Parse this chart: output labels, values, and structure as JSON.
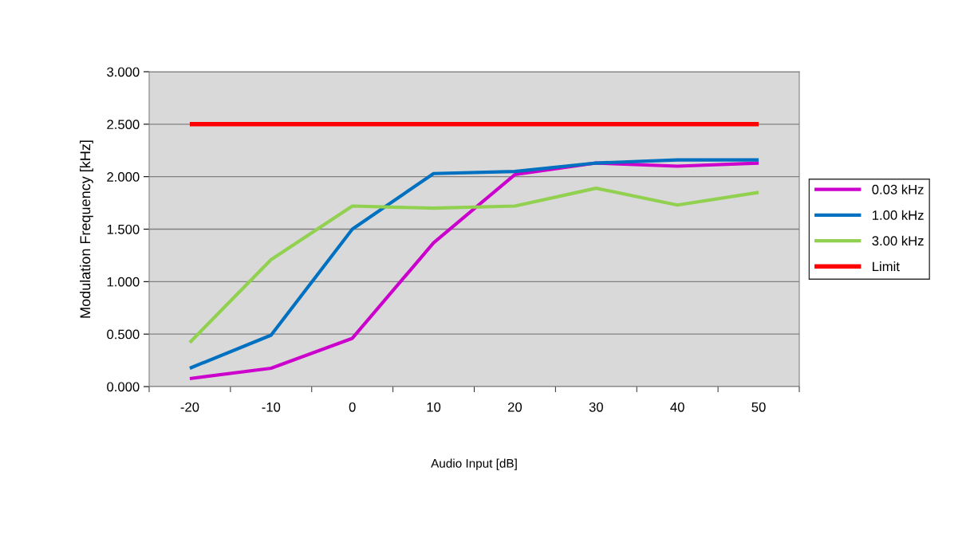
{
  "chart_data": {
    "type": "line",
    "xlabel": "Audio Input [dB]",
    "ylabel": "Modulation Frequency [kHz]",
    "categories": [
      "-20",
      "-10",
      "0",
      "10",
      "20",
      "30",
      "40",
      "50"
    ],
    "series": [
      {
        "name": "0.03 kHz",
        "color": "#cc00cc",
        "values": [
          0.076,
          0.175,
          0.46,
          1.37,
          2.02,
          2.13,
          2.1,
          2.13
        ]
      },
      {
        "name": "1.00 kHz",
        "color": "#0070c0",
        "values": [
          0.175,
          0.49,
          1.5,
          2.03,
          2.05,
          2.13,
          2.16,
          2.16
        ]
      },
      {
        "name": "3.00 kHz",
        "color": "#92d050",
        "values": [
          0.42,
          1.21,
          1.72,
          1.7,
          1.72,
          1.89,
          1.73,
          1.85
        ]
      },
      {
        "name": "Limit",
        "color": "#ff0000",
        "values": [
          2.5,
          2.5,
          2.5,
          2.5,
          2.5,
          2.5,
          2.5,
          2.5
        ]
      }
    ],
    "ylim": [
      0,
      3
    ],
    "yticks": [
      {
        "value": 0,
        "label": "0.000"
      },
      {
        "value": 0.5,
        "label": "0.500"
      },
      {
        "value": 1,
        "label": "1.000"
      },
      {
        "value": 1.5,
        "label": "1.500"
      },
      {
        "value": 2,
        "label": "2.000"
      },
      {
        "value": 2.5,
        "label": "2.500"
      },
      {
        "value": 3,
        "label": "3.000"
      }
    ],
    "grid": "y",
    "legend": "right",
    "marker": "none",
    "line_style": "solid"
  }
}
